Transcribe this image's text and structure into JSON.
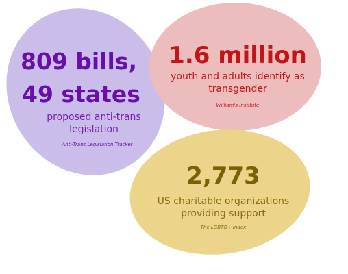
{
  "colors": {
    "background": "#ffffff",
    "purple_blob": "#cbbdea",
    "purple_text": "#6a0eaa",
    "purple_desc": "#7421b3",
    "pink_blob": "#edbcbc",
    "pink_text": "#c11518",
    "gold_blob": "#ecd48a",
    "gold_text": "#7c6007",
    "gold_desc": "#8a6a10"
  },
  "stats": {
    "legislation": {
      "headline_line1": "809 bills,",
      "headline_line2": "49 states",
      "description_line1": "proposed anti-trans",
      "description_line2": "legislation",
      "source": "Anti-Trans Legislation Tracker"
    },
    "population": {
      "headline": "1.6 million",
      "description_line1": "youth and adults identify as",
      "description_line2": "transgender",
      "source": "William's Institute"
    },
    "organizations": {
      "headline": "2,773",
      "description_line1": "US charitable organizations",
      "description_line2": "providing support",
      "source": "The LGBTQ+ Index"
    }
  }
}
